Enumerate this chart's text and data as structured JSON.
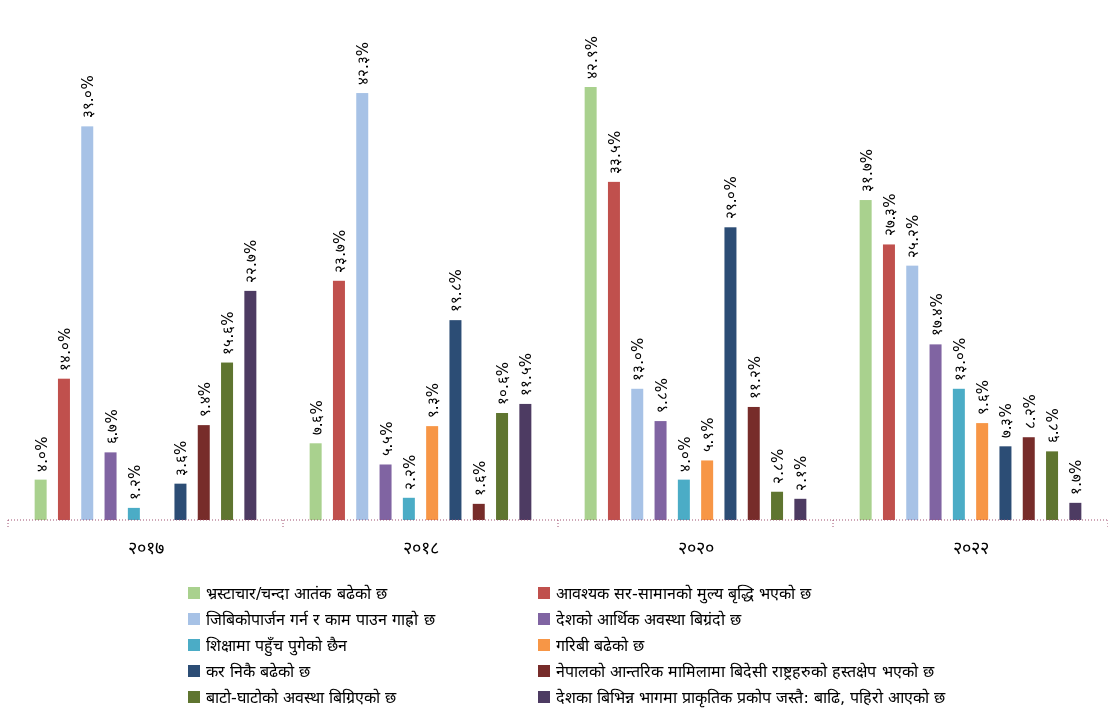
{
  "chart_data": {
    "type": "bar",
    "categories": [
      "२०१७",
      "२०१८",
      "२०२०",
      "२०२२"
    ],
    "legend": "bottom",
    "series": [
      {
        "name": "भ्रस्टाचार/चन्दा आतंक बढेको छ",
        "color": "#a9d18e",
        "values": [
          4.0,
          7.6,
          42.9,
          31.7
        ],
        "value_labels": [
          "४.०%",
          "७.६%",
          "४२.९%",
          "३१.७%"
        ]
      },
      {
        "name": "आवश्यक सर-सामानको मुल्य बृद्धि भएको छ",
        "color": "#c0504d",
        "values": [
          14.0,
          23.7,
          33.5,
          27.3
        ],
        "value_labels": [
          "१४.०%",
          "२३.७%",
          "३३.५%",
          "२७.३%"
        ]
      },
      {
        "name": "जिबिकोपार्जन गर्न र काम पाउन गाह्रो छ",
        "color": "#a7c2e6",
        "values": [
          39.0,
          42.3,
          13.0,
          25.2
        ],
        "value_labels": [
          "३९.०%",
          "४२.३%",
          "१३.०%",
          "२५.२%"
        ]
      },
      {
        "name": "देशको आर्थिक अवस्था बिग्रंदो छ",
        "color": "#8064a2",
        "values": [
          6.7,
          5.5,
          9.8,
          17.4
        ],
        "value_labels": [
          "६.७%",
          "५.५%",
          "९.८%",
          "१७.४%"
        ]
      },
      {
        "name": "शिक्षामा पहुँच पुगेको छैन",
        "color": "#4bacc6",
        "values": [
          1.2,
          2.2,
          4.0,
          13.0
        ],
        "value_labels": [
          "१.२%",
          "२.२%",
          "४.०%",
          "१३.०%"
        ]
      },
      {
        "name": "गरिबी बढेको छ",
        "color": "#f79646",
        "values": [
          null,
          9.3,
          5.9,
          9.6
        ],
        "value_labels": [
          null,
          "९.३%",
          "५.९%",
          "९.६%"
        ]
      },
      {
        "name": "कर निकै बढेको छ",
        "color": "#2c4d75",
        "values": [
          3.6,
          19.8,
          29.0,
          7.3
        ],
        "value_labels": [
          "३.६%",
          "१९.८%",
          "२९.०%",
          "७.३%"
        ]
      },
      {
        "name": "नेपालको आन्तरिक मामिलामा बिदेसी राष्ट्रहरुको हस्तक्षेप भएको छ",
        "color": "#772c2a",
        "values": [
          9.4,
          1.6,
          11.2,
          8.2
        ],
        "value_labels": [
          "९.४%",
          "१.६%",
          "११.२%",
          "८.२%"
        ]
      },
      {
        "name": "बाटो-घाटोको अवस्था बिग्रिएको छ",
        "color": "#5f7530",
        "values": [
          15.6,
          10.6,
          2.8,
          6.8
        ],
        "value_labels": [
          "१५.६%",
          "१०.६%",
          "२.८%",
          "६.८%"
        ]
      },
      {
        "name": "देशका बिभिन्न भागमा प्राकृतिक प्रकोप जस्तै: बाढि, पहिरो आएको छ",
        "color": "#4d3b62",
        "values": [
          22.7,
          11.5,
          2.1,
          1.7
        ],
        "value_labels": [
          "२२.७%",
          "११.५%",
          "२.१%",
          "१.७%"
        ]
      }
    ]
  }
}
